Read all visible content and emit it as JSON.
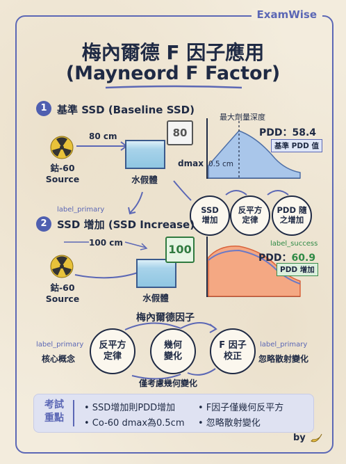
{
  "brand": "ExamWise",
  "title_zh": "梅內爾德 F 因子應用",
  "title_en": "(Mayneord F Factor)",
  "section1": {
    "number": "1",
    "title": "基準 SSD (Baseline SSD)",
    "distance": "80 cm",
    "source_label": "鈷-60 Source",
    "phantom_label": "水假體",
    "counter": "80",
    "dmax_label": "dmax",
    "dmax_value": "0.5 cm",
    "peak_label": "最大劑量深度",
    "pdd_label": "PDD：58.4",
    "pdd_badge": "基準 PDD 值"
  },
  "flow1": {
    "a": "SSD 增加",
    "b": "反平方 定律",
    "c": "PDD 隨之增加"
  },
  "section2": {
    "tag": "label_primary",
    "number": "2",
    "title": "SSD 增加 (SSD Increase)",
    "distance": "100 cm",
    "source_label": "鈷-60 Source",
    "phantom_label": "水假體",
    "counter": "100",
    "success_tag": "label_success",
    "pdd_prefix": "PDD：",
    "pdd_value": "60.9",
    "pdd_badge": "PDD 增加"
  },
  "factor": {
    "title": "梅內爾德因子",
    "left_tag": "label_primary",
    "left_label": "核心概念",
    "c1": "反平方 定律",
    "c2": "幾何 變化",
    "c3": "F 因子 校正",
    "right_tag": "label_primary",
    "right_label": "忽略散射變化",
    "bottom_label": "僅考慮幾何變化"
  },
  "summary": {
    "label": "考試 重點",
    "p1": "• SSD增加則PDD增加",
    "p2": "• F因子僅幾何反平方",
    "p3": "• Co-60 dmax為0.5cm",
    "p4": "• 忽略散射變化"
  },
  "footer": "by",
  "colors": {
    "accent": "#5b67b5",
    "curve1": "#9fc0e6",
    "curve2": "#f0a27a",
    "success": "#2f8a45"
  }
}
